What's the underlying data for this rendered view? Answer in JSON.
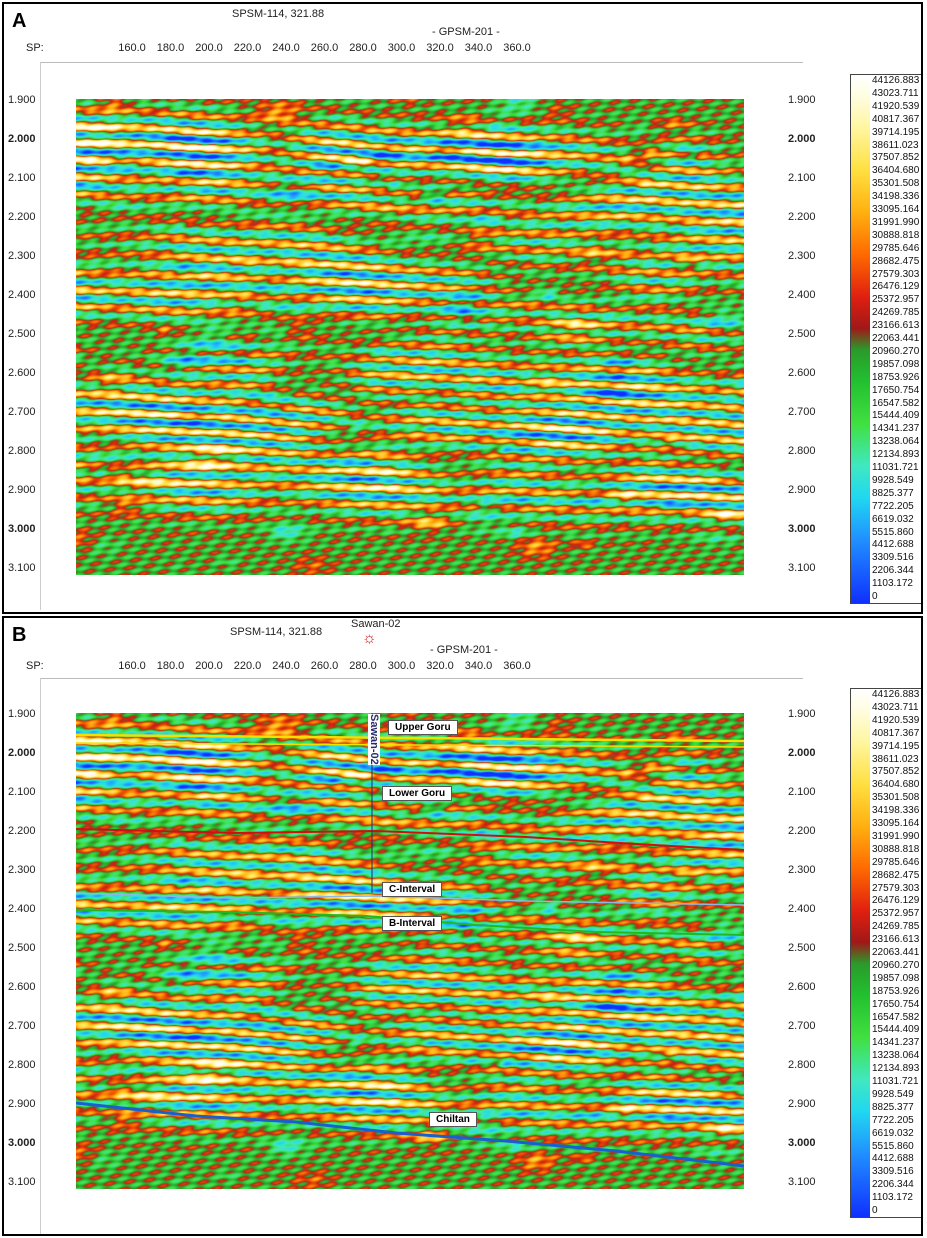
{
  "panels": [
    {
      "label": "A",
      "well_top": "SPSM-114, 321.88",
      "line_name": "- GPSM-201 -",
      "sp_label": "SP:"
    },
    {
      "label": "B",
      "well_top": "SPSM-114, 321.88",
      "well_name": "Sawan-02",
      "well_vertical": "Sawan-02",
      "line_name": "- GPSM-201 -",
      "sp_label": "SP:",
      "horizons": [
        {
          "name": "Upper Goru",
          "color": "#f2e000"
        },
        {
          "name": "Lower Goru",
          "color": "#d01010"
        },
        {
          "name": "C-Interval",
          "color": "#8ab8e8"
        },
        {
          "name": "B-Interval",
          "color": "#22b822"
        },
        {
          "name": "Chiltan",
          "color": "#1a5fd0"
        }
      ]
    }
  ],
  "sp_ticks": [
    "160.0",
    "180.0",
    "200.0",
    "220.0",
    "240.0",
    "260.0",
    "280.0",
    "300.0",
    "320.0",
    "340.0",
    "360.0"
  ],
  "time_ticks": [
    "1.900",
    "2.000",
    "2.100",
    "2.200",
    "2.300",
    "2.400",
    "2.500",
    "2.600",
    "2.700",
    "2.800",
    "2.900",
    "3.000",
    "3.100"
  ],
  "colorbar_values": [
    "44126.883",
    "43023.711",
    "41920.539",
    "40817.367",
    "39714.195",
    "38611.023",
    "37507.852",
    "36404.680",
    "35301.508",
    "34198.336",
    "33095.164",
    "31991.990",
    "30888.818",
    "29785.646",
    "28682.475",
    "27579.303",
    "26476.129",
    "25372.957",
    "24269.785",
    "23166.613",
    "22063.441",
    "20960.270",
    "19857.098",
    "18753.926",
    "17650.754",
    "16547.582",
    "15444.409",
    "14341.237",
    "13238.064",
    "12134.893",
    "11031.721",
    "9928.549",
    "8825.377",
    "7722.205",
    "6619.032",
    "5515.860",
    "4412.688",
    "3309.516",
    "2206.344",
    "1103.172",
    "0"
  ]
}
